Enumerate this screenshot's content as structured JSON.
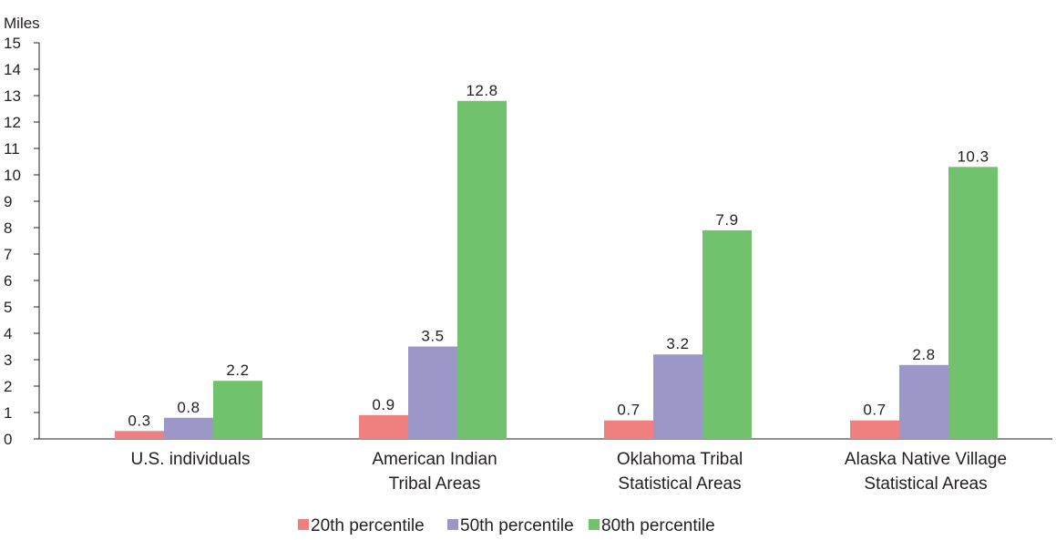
{
  "chart_data": {
    "type": "bar",
    "ylabel": "Miles",
    "ylim": [
      0,
      15
    ],
    "yticks": [
      0,
      1,
      2,
      3,
      4,
      5,
      6,
      7,
      8,
      9,
      10,
      11,
      12,
      13,
      14,
      15
    ],
    "grid": false,
    "legend_position": "bottom",
    "categories": [
      [
        "U.S. individuals"
      ],
      [
        "American Indian",
        "Tribal Areas"
      ],
      [
        "Oklahoma Tribal",
        "Statistical Areas"
      ],
      [
        "Alaska Native Village",
        "Statistical Areas"
      ]
    ],
    "series": [
      {
        "name": "20th percentile",
        "color": "#f08080",
        "values": [
          0.3,
          0.9,
          0.7,
          0.7
        ]
      },
      {
        "name": "50th percentile",
        "color": "#9b97c9",
        "values": [
          0.8,
          3.5,
          3.2,
          2.8
        ]
      },
      {
        "name": "80th percentile",
        "color": "#70c36c",
        "values": [
          2.2,
          12.8,
          7.9,
          10.3
        ]
      }
    ]
  }
}
